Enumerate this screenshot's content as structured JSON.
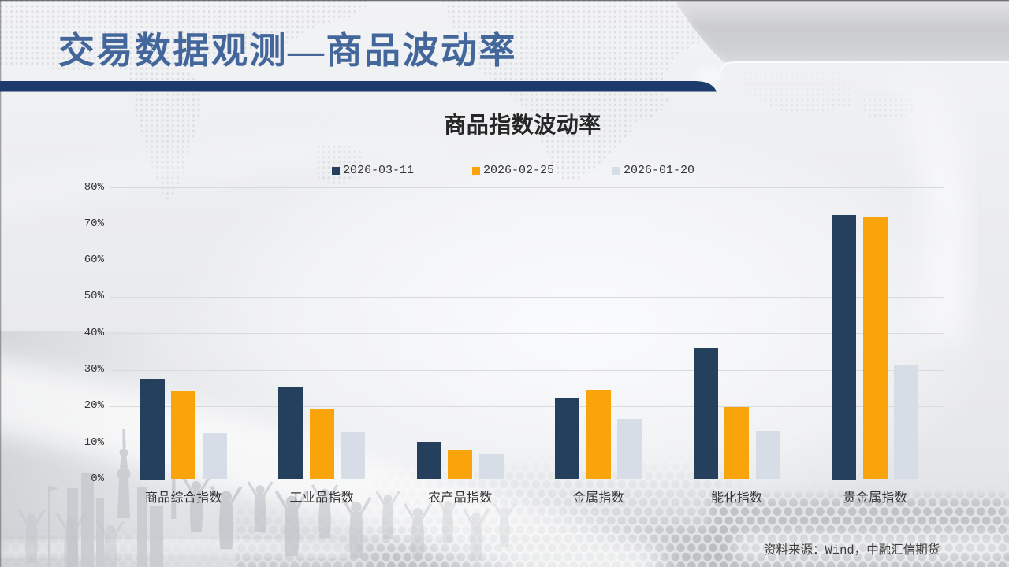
{
  "slide": {
    "title": "交易数据观测—商品波动率"
  },
  "chart_data": {
    "type": "bar",
    "title": "商品指数波动率",
    "categories": [
      "商品综合指数",
      "工业品指数",
      "农产品指数",
      "金属指数",
      "能化指数",
      "贵金属指数"
    ],
    "series": [
      {
        "name": "2026-03-11",
        "color": "#24405c",
        "values": [
          27.5,
          25.1,
          10.2,
          22.1,
          35.9,
          72.5
        ]
      },
      {
        "name": "2026-02-25",
        "color": "#faa40c",
        "values": [
          24.3,
          19.3,
          8.1,
          24.5,
          19.7,
          71.7
        ]
      },
      {
        "name": "2026-01-20",
        "color": "#d7dde6",
        "values": [
          12.7,
          13.0,
          6.8,
          16.5,
          13.3,
          31.5
        ]
      }
    ],
    "y_ticks": [
      "0%",
      "10%",
      "20%",
      "30%",
      "40%",
      "50%",
      "60%",
      "70%",
      "80%"
    ],
    "ylim": [
      0,
      80
    ],
    "unit": "%",
    "grid": true,
    "legend_position": "top"
  },
  "footer": {
    "source": "资料来源：Wind，中融汇信期货"
  },
  "colors": {
    "title_text": "#44679b",
    "divider": "#1c3a6c",
    "grid": "#d9dadc",
    "bar_dark": "#24405c",
    "bar_orange": "#faa40c",
    "bar_gray": "#d7dde6"
  }
}
